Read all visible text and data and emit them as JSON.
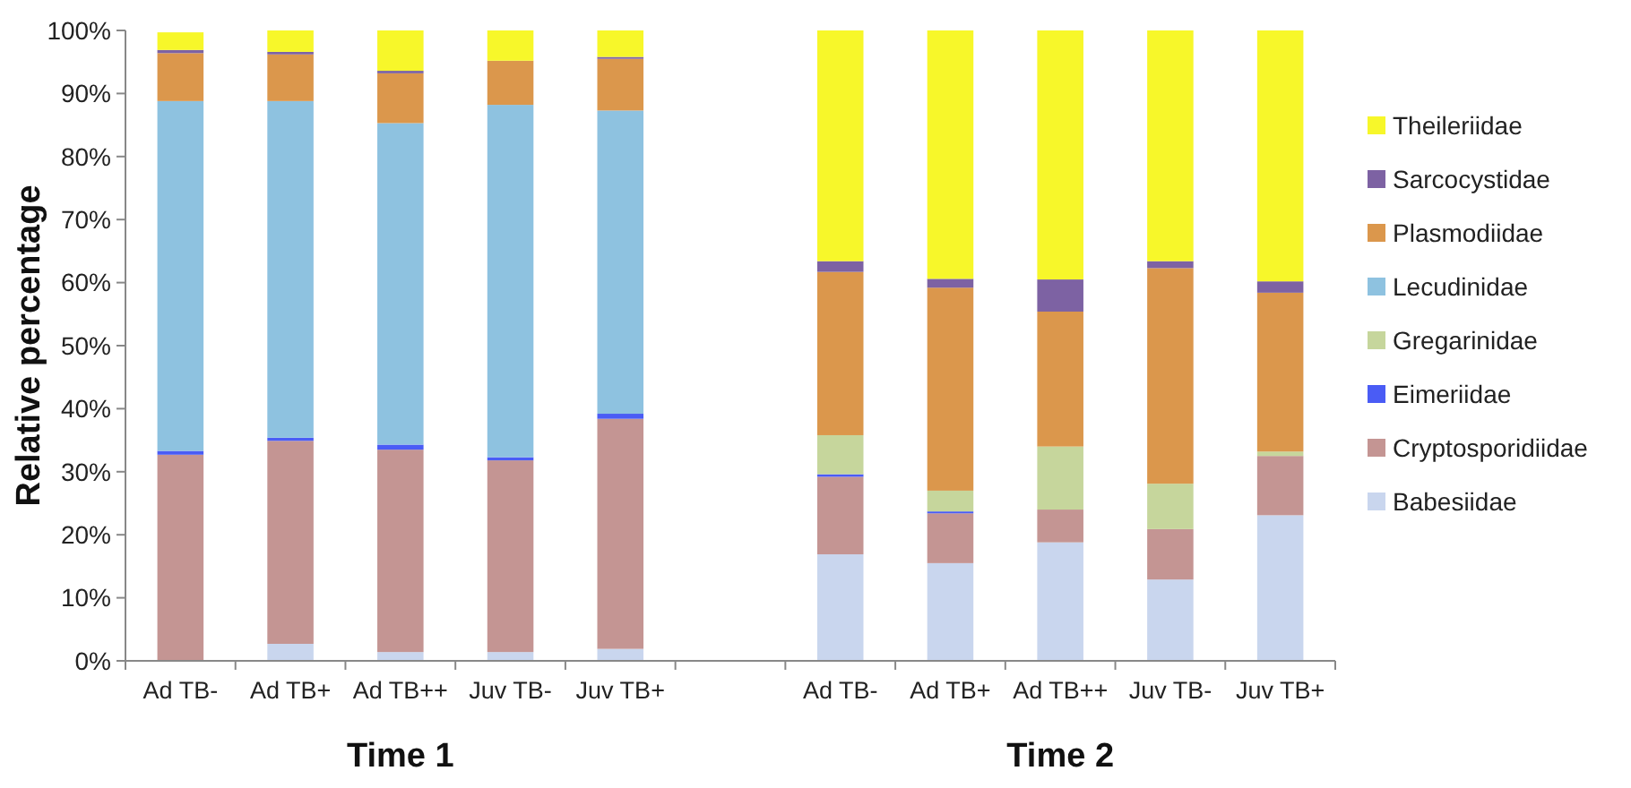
{
  "chart_data": {
    "type": "bar",
    "stacked": true,
    "ylabel": "Relative percentage",
    "categories": [
      "Ad TB-",
      "Ad TB+",
      "Ad TB++",
      "Juv TB-",
      "Juv TB+",
      null,
      "Ad TB-",
      "Ad TB+",
      "Ad TB++",
      "Juv TB-",
      "Juv TB+"
    ],
    "series": [
      {
        "name": "Babesiidae",
        "color": "#c9d6ee",
        "values": [
          null,
          2.7,
          1.4,
          1.4,
          1.9,
          null,
          16.9,
          15.5,
          18.8,
          12.9,
          23.1
        ]
      },
      {
        "name": "Cryptosporidiidae",
        "color": "#c49593",
        "values": [
          32.7,
          32.2,
          32.1,
          30.4,
          36.5,
          null,
          12.3,
          7.9,
          5.2,
          8.0,
          9.4
        ]
      },
      {
        "name": "Eimeriidae",
        "color": "#4a5cf5",
        "values": [
          0.6,
          0.5,
          0.8,
          0.5,
          0.8,
          null,
          0.4,
          0.3,
          0,
          0,
          0
        ]
      },
      {
        "name": "Gregarinidae",
        "color": "#c6d69c",
        "values": [
          0,
          0,
          0,
          0,
          0,
          null,
          6.2,
          3.3,
          10.0,
          7.2,
          0.7
        ]
      },
      {
        "name": "Lecudinidae",
        "color": "#8ec2e0",
        "values": [
          55.5,
          53.4,
          51.0,
          55.9,
          48.1,
          null,
          0,
          0,
          0,
          0,
          0
        ]
      },
      {
        "name": "Plasmodiidae",
        "color": "#db974c",
        "values": [
          7.6,
          7.4,
          7.9,
          7.0,
          8.2,
          null,
          25.9,
          32.2,
          21.4,
          34.2,
          25.2
        ]
      },
      {
        "name": "Sarcocystidae",
        "color": "#7d62a3",
        "values": [
          0.5,
          0.4,
          0.4,
          0,
          0.3,
          null,
          1.7,
          1.4,
          5.1,
          1.1,
          1.8
        ]
      },
      {
        "name": "Theileriidae",
        "color": "#f7f72a",
        "values": [
          2.8,
          3.4,
          6.4,
          4.8,
          4.2,
          null,
          36.6,
          39.4,
          39.5,
          36.6,
          39.8
        ]
      }
    ],
    "ylim": [
      0,
      100
    ],
    "yticks": [
      {
        "value": 0,
        "label": "0%"
      },
      {
        "value": 10,
        "label": "10%"
      },
      {
        "value": 20,
        "label": "20%"
      },
      {
        "value": 30,
        "label": "30%"
      },
      {
        "value": 40,
        "label": "40%"
      },
      {
        "value": 50,
        "label": "50%"
      },
      {
        "value": 60,
        "label": "60%"
      },
      {
        "value": 70,
        "label": "70%"
      },
      {
        "value": 80,
        "label": "80%"
      },
      {
        "value": 90,
        "label": "90%"
      },
      {
        "value": 100,
        "label": "100%"
      }
    ],
    "annotations": [
      "Time 1",
      "Time 2"
    ],
    "grid": false,
    "legend": "right"
  }
}
